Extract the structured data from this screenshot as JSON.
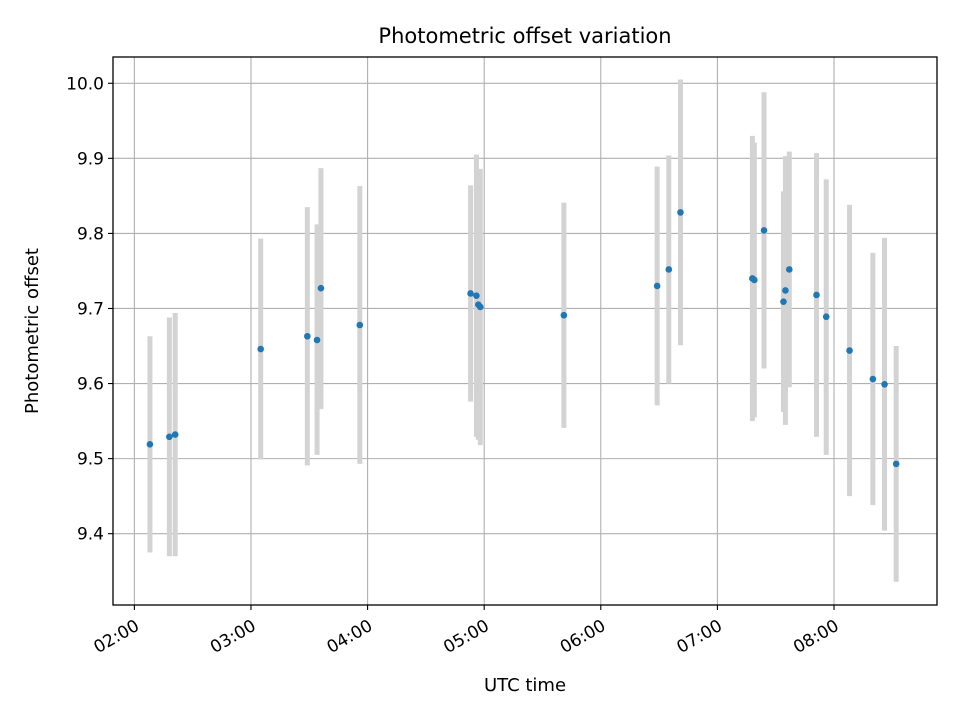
{
  "chart_data": {
    "type": "scatter",
    "title": "Photometric offset variation",
    "xlabel": "UTC time",
    "ylabel": "Photometric offset",
    "x_unit": "UTC time (HH:MM)",
    "xlim": [
      "01:49",
      "08:53"
    ],
    "ylim": [
      9.305,
      10.035
    ],
    "x_ticks": [
      "02:00",
      "03:00",
      "04:00",
      "05:00",
      "06:00",
      "07:00",
      "08:00"
    ],
    "y_ticks": [
      9.4,
      9.5,
      9.6,
      9.7,
      9.8,
      9.9,
      10.0
    ],
    "y_tick_labels": [
      "9.4",
      "9.5",
      "9.6",
      "9.7",
      "9.8",
      "9.9",
      "10.0"
    ],
    "grid": true,
    "legend": "none",
    "point_color": "#1f77b4",
    "errorbar_color": "#d3d3d3",
    "series": [
      {
        "points": [
          {
            "x": "02:08",
            "y": 9.519,
            "lo": 9.375,
            "hi": 9.663
          },
          {
            "x": "02:18",
            "y": 9.529,
            "lo": 9.37,
            "hi": 9.688
          },
          {
            "x": "02:21",
            "y": 9.532,
            "lo": 9.37,
            "hi": 9.694
          },
          {
            "x": "03:05",
            "y": 9.646,
            "lo": 9.499,
            "hi": 9.793
          },
          {
            "x": "03:29",
            "y": 9.663,
            "lo": 9.491,
            "hi": 9.835
          },
          {
            "x": "03:34",
            "y": 9.658,
            "lo": 9.505,
            "hi": 9.812
          },
          {
            "x": "03:36",
            "y": 9.727,
            "lo": 9.566,
            "hi": 9.887
          },
          {
            "x": "03:56",
            "y": 9.678,
            "lo": 9.493,
            "hi": 9.863
          },
          {
            "x": "04:53",
            "y": 9.72,
            "lo": 9.576,
            "hi": 9.864
          },
          {
            "x": "04:56",
            "y": 9.717,
            "lo": 9.529,
            "hi": 9.905
          },
          {
            "x": "04:57",
            "y": 9.705,
            "lo": 9.525,
            "hi": 9.885
          },
          {
            "x": "04:58",
            "y": 9.702,
            "lo": 9.518,
            "hi": 9.886
          },
          {
            "x": "05:41",
            "y": 9.691,
            "lo": 9.541,
            "hi": 9.841
          },
          {
            "x": "06:29",
            "y": 9.73,
            "lo": 9.571,
            "hi": 9.889
          },
          {
            "x": "06:35",
            "y": 9.752,
            "lo": 9.6,
            "hi": 9.904
          },
          {
            "x": "06:41",
            "y": 9.828,
            "lo": 9.651,
            "hi": 10.005
          },
          {
            "x": "07:18",
            "y": 9.74,
            "lo": 9.55,
            "hi": 9.93
          },
          {
            "x": "07:19",
            "y": 9.738,
            "lo": 9.555,
            "hi": 9.921
          },
          {
            "x": "07:24",
            "y": 9.804,
            "lo": 9.62,
            "hi": 9.988
          },
          {
            "x": "07:34",
            "y": 9.709,
            "lo": 9.562,
            "hi": 9.856
          },
          {
            "x": "07:35",
            "y": 9.724,
            "lo": 9.545,
            "hi": 9.903
          },
          {
            "x": "07:37",
            "y": 9.752,
            "lo": 9.595,
            "hi": 9.909
          },
          {
            "x": "07:51",
            "y": 9.718,
            "lo": 9.529,
            "hi": 9.907
          },
          {
            "x": "07:56",
            "y": 9.689,
            "lo": 9.505,
            "hi": 9.872
          },
          {
            "x": "08:08",
            "y": 9.644,
            "lo": 9.45,
            "hi": 9.838
          },
          {
            "x": "08:20",
            "y": 9.606,
            "lo": 9.438,
            "hi": 9.774
          },
          {
            "x": "08:26",
            "y": 9.599,
            "lo": 9.404,
            "hi": 9.794
          },
          {
            "x": "08:32",
            "y": 9.493,
            "lo": 9.336,
            "hi": 9.65
          }
        ]
      }
    ]
  }
}
